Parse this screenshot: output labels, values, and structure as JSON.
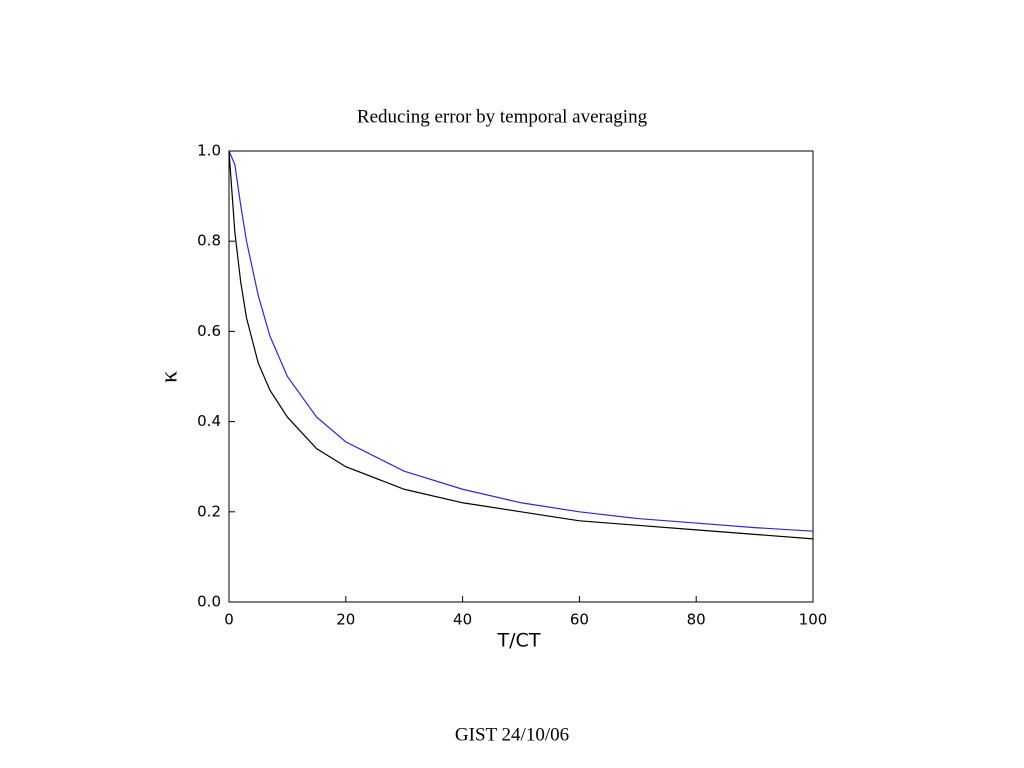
{
  "chart_data": {
    "type": "line",
    "title": "Reducing error by temporal averaging",
    "xlabel": "T/CT",
    "ylabel": "κ",
    "x": [
      0,
      1,
      2,
      3,
      5,
      7,
      10,
      15,
      20,
      30,
      40,
      50,
      60,
      70,
      80,
      90,
      100
    ],
    "series": [
      {
        "color": "#2a2ad0",
        "values": [
          1.0,
          0.97,
          0.88,
          0.8,
          0.68,
          0.59,
          0.5,
          0.41,
          0.355,
          0.29,
          0.25,
          0.22,
          0.2,
          0.185,
          0.175,
          0.165,
          0.157
        ]
      },
      {
        "color": "#000000",
        "values": [
          1.0,
          0.82,
          0.71,
          0.63,
          0.53,
          0.47,
          0.41,
          0.34,
          0.3,
          0.25,
          0.22,
          0.2,
          0.18,
          0.17,
          0.16,
          0.15,
          0.14
        ]
      }
    ],
    "xlim": [
      0,
      100
    ],
    "xticks": [
      0,
      20,
      40,
      60,
      80,
      100
    ],
    "ylim": [
      0,
      1
    ],
    "yticks": [
      {
        "value": 0,
        "label": "0.0"
      },
      {
        "value": 0.2,
        "label": "0.2"
      },
      {
        "value": 0.4,
        "label": "0.4"
      },
      {
        "value": 0.6,
        "label": "0.6"
      },
      {
        "value": 0.8,
        "label": "0.8"
      },
      {
        "value": 1,
        "label": "1.0"
      }
    ],
    "grid": false
  },
  "footer": "GIST 24/10/06"
}
